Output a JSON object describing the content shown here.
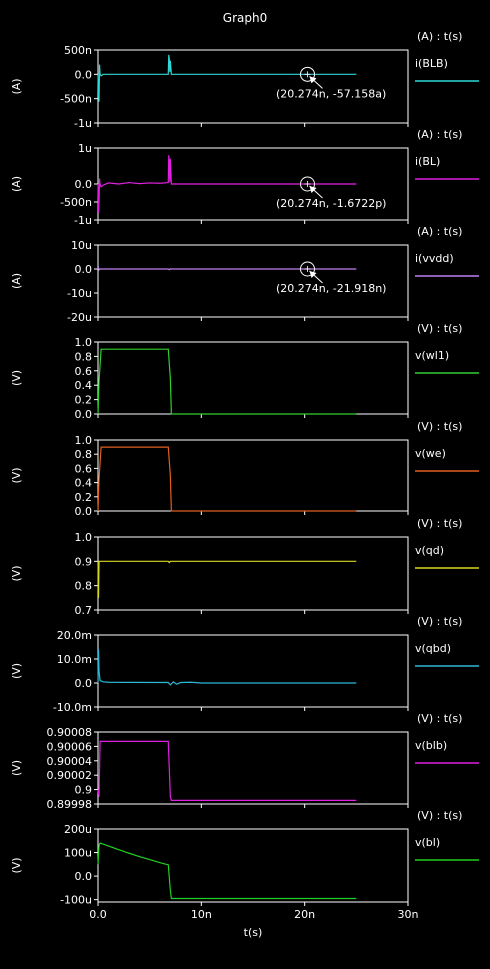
{
  "title": "Graph0",
  "xlabel": "t(s)",
  "x_ticks": [
    "0.0",
    "10n",
    "20n",
    "30n"
  ],
  "x_tick_values": [
    0,
    10,
    20,
    30
  ],
  "xlim": [
    0,
    30
  ],
  "chart_data": [
    {
      "type": "line",
      "series": [
        {
          "name": "i(BLB)",
          "color": "#2ed8d8",
          "x": [
            0,
            0.05,
            0.1,
            0.15,
            0.2,
            0.3,
            0.5,
            1,
            3,
            6.8,
            6.85,
            6.9,
            6.95,
            7.0,
            7.1,
            8,
            15,
            25
          ],
          "y": [
            0,
            -400,
            -560,
            200,
            0,
            -30,
            0,
            0,
            0,
            0,
            400,
            300,
            50,
            280,
            0,
            0,
            0,
            0
          ]
        }
      ],
      "units_label": "(A) : t(s)",
      "ylabel": "(A)",
      "ylim": [
        -1000,
        500
      ],
      "y_ticks": [
        "500n",
        "0.0",
        "-500n",
        "-1u"
      ],
      "y_tick_values": [
        500,
        0,
        -500,
        -1000
      ],
      "marker": {
        "x": 20.274,
        "y": 0,
        "label": "(20.274n, -57.158a)"
      }
    },
    {
      "type": "line",
      "series": [
        {
          "name": "i(BL)",
          "color": "#e020e0",
          "x": [
            0,
            0.05,
            0.1,
            0.15,
            0.2,
            0.3,
            0.5,
            1,
            2,
            3,
            4,
            5,
            6,
            6.8,
            6.85,
            6.9,
            6.95,
            7.0,
            7.1,
            8,
            15,
            25
          ],
          "y": [
            0,
            -800,
            -500,
            150,
            0,
            -80,
            -30,
            30,
            0,
            40,
            10,
            30,
            20,
            40,
            800,
            600,
            50,
            700,
            0,
            0,
            0,
            0
          ]
        }
      ],
      "units_label": "(A) : t(s)",
      "ylabel": "(A)",
      "ylim": [
        -1000,
        1000
      ],
      "y_ticks": [
        "1u",
        "0.0",
        "-500n",
        "-1u"
      ],
      "y_tick_values": [
        1000,
        0,
        -500,
        -1000
      ],
      "marker": {
        "x": 20.274,
        "y": 0,
        "label": "(20.274n, -1.6722p)"
      }
    },
    {
      "type": "line",
      "series": [
        {
          "name": "i(vvdd)",
          "color": "#c080f0",
          "x": [
            0,
            0.05,
            0.1,
            0.2,
            1,
            6.8,
            6.9,
            7.0,
            7.1,
            25
          ],
          "y": [
            0,
            0.5,
            -0.3,
            0,
            0,
            0,
            -0.3,
            0.1,
            0,
            0
          ]
        }
      ],
      "units_label": "(A) : t(s)",
      "ylabel": "(A)",
      "ylim": [
        -20,
        10
      ],
      "y_ticks": [
        "10u",
        "0.0",
        "-10u",
        "-20u"
      ],
      "y_tick_values": [
        10,
        0,
        -10,
        -20
      ],
      "marker": {
        "x": 20.274,
        "y": 0,
        "label": "(20.274n, -21.918n)"
      }
    },
    {
      "type": "line",
      "series": [
        {
          "name": "v(wl1)",
          "color": "#30d030",
          "x": [
            0,
            0.1,
            0.3,
            6.8,
            7.0,
            7.1,
            25
          ],
          "y": [
            0,
            0.45,
            0.9,
            0.9,
            0.5,
            0,
            0
          ]
        }
      ],
      "units_label": "(V) : t(s)",
      "ylabel": "(V)",
      "ylim": [
        0,
        1.0
      ],
      "y_ticks": [
        "1.0",
        "0.8",
        "0.6",
        "0.4",
        "0.2",
        "0.0"
      ],
      "y_tick_values": [
        1.0,
        0.8,
        0.6,
        0.4,
        0.2,
        0.0
      ]
    },
    {
      "type": "line",
      "series": [
        {
          "name": "v(we)",
          "color": "#e06020",
          "x": [
            0,
            0.1,
            0.3,
            6.8,
            7.0,
            7.1,
            25
          ],
          "y": [
            0,
            0.45,
            0.9,
            0.9,
            0.5,
            0,
            0
          ]
        }
      ],
      "units_label": "(V) : t(s)",
      "ylabel": "(V)",
      "ylim": [
        0,
        1.0
      ],
      "y_ticks": [
        "1.0",
        "0.8",
        "0.6",
        "0.4",
        "0.2",
        "0.0"
      ],
      "y_tick_values": [
        1.0,
        0.8,
        0.6,
        0.4,
        0.2,
        0.0
      ]
    },
    {
      "type": "line",
      "series": [
        {
          "name": "v(qd)",
          "color": "#d8d820",
          "x": [
            0,
            0.05,
            0.1,
            0.3,
            6.8,
            6.9,
            7.0,
            7.1,
            25
          ],
          "y": [
            0.9,
            0.75,
            0.9,
            0.9,
            0.9,
            0.895,
            0.9,
            0.9,
            0.9
          ]
        }
      ],
      "units_label": "(V) : t(s)",
      "ylabel": "(V)",
      "ylim": [
        0.7,
        1.0
      ],
      "y_ticks": [
        "1.0",
        "0.9",
        "0.8",
        "0.7"
      ],
      "y_tick_values": [
        1.0,
        0.9,
        0.8,
        0.7
      ]
    },
    {
      "type": "line",
      "series": [
        {
          "name": "v(qbd)",
          "color": "#2eb8d8",
          "x": [
            0,
            0.05,
            0.1,
            0.2,
            0.5,
            1,
            6.8,
            7.0,
            7.3,
            7.6,
            8,
            9,
            10,
            25
          ],
          "y": [
            0,
            14,
            5,
            1,
            0.5,
            0.3,
            0.2,
            -0.8,
            0.5,
            -0.5,
            0.2,
            0.3,
            0,
            0
          ]
        }
      ],
      "units_label": "(V) : t(s)",
      "ylabel": "(V)",
      "ylim": [
        -10,
        20
      ],
      "y_ticks": [
        "20.0m",
        "10.0m",
        "0.0",
        "-10.0m"
      ],
      "y_tick_values": [
        20,
        10,
        0,
        -10
      ]
    },
    {
      "type": "line",
      "series": [
        {
          "name": "v(blb)",
          "color": "#e020e0",
          "x": [
            0,
            0.1,
            0.2,
            0.3,
            6.8,
            7.0,
            7.1,
            25
          ],
          "y": [
            0.9,
            0.89999,
            0.900067,
            0.900067,
            0.900067,
            0.89999,
            0.899985,
            0.899985
          ]
        }
      ],
      "units_label": "(V) : t(s)",
      "ylabel": "(V)",
      "ylim": [
        0.89998,
        0.90008
      ],
      "y_ticks": [
        "0.90008",
        "0.90006",
        "0.90004",
        "0.90002",
        "0.9",
        "0.89998"
      ],
      "y_tick_values": [
        0.90008,
        0.90006,
        0.90004,
        0.90002,
        0.9,
        0.89998
      ]
    },
    {
      "type": "line",
      "series": [
        {
          "name": "v(bl)",
          "color": "#20d020",
          "x": [
            0,
            0.1,
            0.2,
            0.5,
            1,
            2,
            3,
            4,
            5,
            6,
            6.8,
            7.0,
            7.1,
            25
          ],
          "y": [
            50,
            130,
            140,
            136,
            128,
            112,
            97,
            83,
            70,
            57,
            48,
            -60,
            -95,
            -95
          ]
        }
      ],
      "units_label": "(V) : t(s)",
      "ylabel": "(V)",
      "ylim": [
        -110,
        200
      ],
      "y_ticks": [
        "200u",
        "100u",
        "0.0",
        "-100u"
      ],
      "y_tick_values": [
        200,
        100,
        0,
        -100
      ]
    }
  ]
}
